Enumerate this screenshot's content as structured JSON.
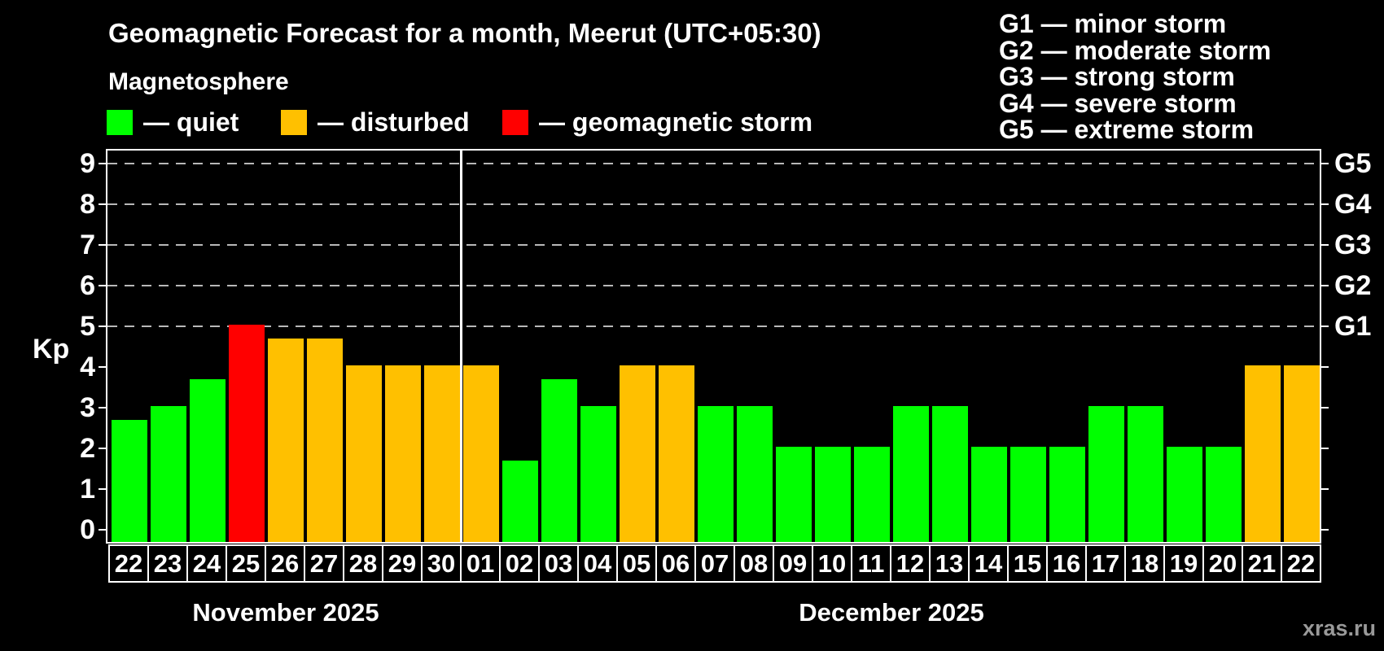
{
  "header": {
    "title": "Geomagnetic Forecast for a month, Meerut (UTC+05:30)",
    "subtitle": "Magnetosphere"
  },
  "legend": {
    "items": [
      {
        "id": "quiet",
        "label": "— quiet",
        "color": "#00ff00"
      },
      {
        "id": "disturbed",
        "label": "— disturbed",
        "color": "#ffc000"
      },
      {
        "id": "storm",
        "label": "— geomagnetic storm",
        "color": "#ff0000"
      }
    ]
  },
  "storm_scale": [
    {
      "text": "G1 — minor storm"
    },
    {
      "text": "G2 — moderate storm"
    },
    {
      "text": "G3 — strong storm"
    },
    {
      "text": "G4 — severe storm"
    },
    {
      "text": "G5 — extreme storm"
    }
  ],
  "axis": {
    "kp_label": "Kp"
  },
  "watermark": "xras.ru",
  "chart_data": {
    "type": "bar",
    "title": "Geomagnetic Forecast for a month, Meerut (UTC+05:30)",
    "xlabel": "",
    "ylabel": "Kp",
    "ylim": [
      0,
      9
    ],
    "kp_ticks": [
      0,
      1,
      2,
      3,
      4,
      5,
      6,
      7,
      8,
      9
    ],
    "grid": "horizontal dashed lines at Kp 5-9 (G storm levels)",
    "legend_position": "top-left",
    "g_levels": [
      {
        "kp": 5,
        "label": "G1"
      },
      {
        "kp": 6,
        "label": "G2"
      },
      {
        "kp": 7,
        "label": "G3"
      },
      {
        "kp": 8,
        "label": "G4"
      },
      {
        "kp": 9,
        "label": "G5"
      }
    ],
    "month_groups": [
      {
        "label": "November 2025",
        "count": 9
      },
      {
        "label": "December 2025",
        "count": 22
      }
    ],
    "points": [
      {
        "day": "22",
        "month": "November 2025",
        "kp": 2.67,
        "status": "quiet"
      },
      {
        "day": "23",
        "month": "November 2025",
        "kp": 3,
        "status": "quiet"
      },
      {
        "day": "24",
        "month": "November 2025",
        "kp": 3.67,
        "status": "quiet"
      },
      {
        "day": "25",
        "month": "November 2025",
        "kp": 5,
        "status": "storm"
      },
      {
        "day": "26",
        "month": "November 2025",
        "kp": 4.67,
        "status": "disturbed"
      },
      {
        "day": "27",
        "month": "November 2025",
        "kp": 4.67,
        "status": "disturbed"
      },
      {
        "day": "28",
        "month": "November 2025",
        "kp": 4,
        "status": "disturbed"
      },
      {
        "day": "29",
        "month": "November 2025",
        "kp": 4,
        "status": "disturbed"
      },
      {
        "day": "30",
        "month": "November 2025",
        "kp": 4,
        "status": "disturbed"
      },
      {
        "day": "01",
        "month": "December 2025",
        "kp": 4,
        "status": "disturbed"
      },
      {
        "day": "02",
        "month": "December 2025",
        "kp": 1.67,
        "status": "quiet"
      },
      {
        "day": "03",
        "month": "December 2025",
        "kp": 3.67,
        "status": "quiet"
      },
      {
        "day": "04",
        "month": "December 2025",
        "kp": 3,
        "status": "quiet"
      },
      {
        "day": "05",
        "month": "December 2025",
        "kp": 4,
        "status": "disturbed"
      },
      {
        "day": "06",
        "month": "December 2025",
        "kp": 4,
        "status": "disturbed"
      },
      {
        "day": "07",
        "month": "December 2025",
        "kp": 3,
        "status": "quiet"
      },
      {
        "day": "08",
        "month": "December 2025",
        "kp": 3,
        "status": "quiet"
      },
      {
        "day": "09",
        "month": "December 2025",
        "kp": 2,
        "status": "quiet"
      },
      {
        "day": "10",
        "month": "December 2025",
        "kp": 2,
        "status": "quiet"
      },
      {
        "day": "11",
        "month": "December 2025",
        "kp": 2,
        "status": "quiet"
      },
      {
        "day": "12",
        "month": "December 2025",
        "kp": 3,
        "status": "quiet"
      },
      {
        "day": "13",
        "month": "December 2025",
        "kp": 3,
        "status": "quiet"
      },
      {
        "day": "14",
        "month": "December 2025",
        "kp": 2,
        "status": "quiet"
      },
      {
        "day": "15",
        "month": "December 2025",
        "kp": 2,
        "status": "quiet"
      },
      {
        "day": "16",
        "month": "December 2025",
        "kp": 2,
        "status": "quiet"
      },
      {
        "day": "17",
        "month": "December 2025",
        "kp": 3,
        "status": "quiet"
      },
      {
        "day": "18",
        "month": "December 2025",
        "kp": 3,
        "status": "quiet"
      },
      {
        "day": "19",
        "month": "December 2025",
        "kp": 2,
        "status": "quiet"
      },
      {
        "day": "20",
        "month": "December 2025",
        "kp": 2,
        "status": "quiet"
      },
      {
        "day": "21",
        "month": "December 2025",
        "kp": 4,
        "status": "disturbed"
      },
      {
        "day": "22",
        "month": "December 2025",
        "kp": 4,
        "status": "disturbed"
      }
    ]
  }
}
